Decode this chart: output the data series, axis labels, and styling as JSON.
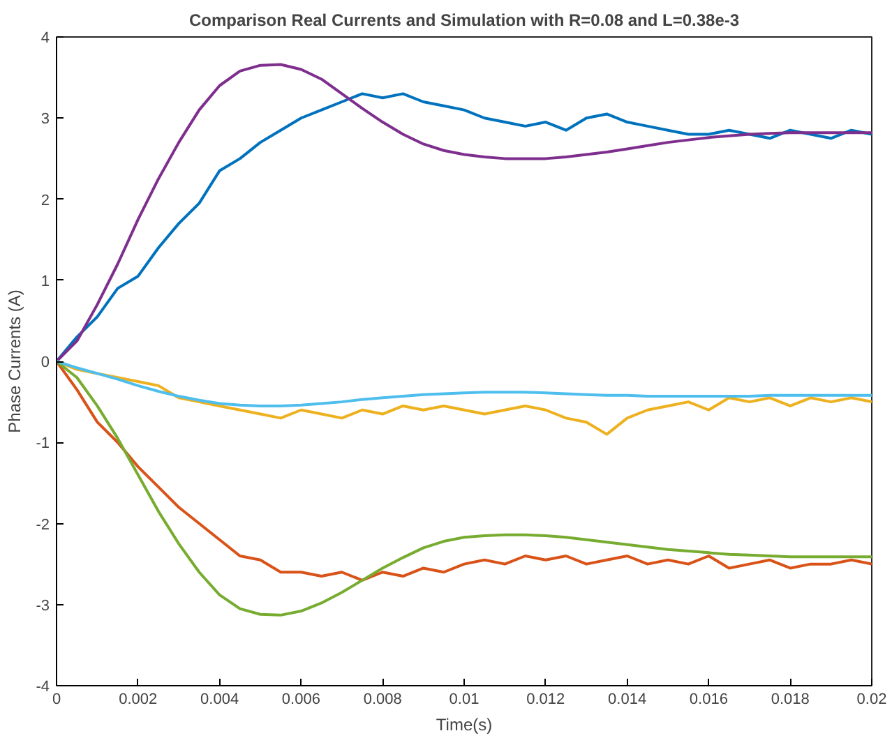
{
  "chart_data": {
    "type": "line",
    "title": "Comparison Real Currents and Simulation with R=0.08 and L=0.38e-3",
    "xlabel": "Time(s)",
    "ylabel": "Phase Currents (A)",
    "x": [
      0,
      0.0005,
      0.001,
      0.0015,
      0.002,
      0.0025,
      0.003,
      0.0035,
      0.004,
      0.0045,
      0.005,
      0.0055,
      0.006,
      0.0065,
      0.007,
      0.0075,
      0.008,
      0.0085,
      0.009,
      0.0095,
      0.01,
      0.0105,
      0.011,
      0.0115,
      0.012,
      0.0125,
      0.013,
      0.0135,
      0.014,
      0.0145,
      0.015,
      0.0155,
      0.016,
      0.0165,
      0.017,
      0.0175,
      0.018,
      0.0185,
      0.019,
      0.0195,
      0.02
    ],
    "series": [
      {
        "color": "#0072bd",
        "values": [
          0,
          0.3,
          0.55,
          0.9,
          1.05,
          1.4,
          1.7,
          1.95,
          2.35,
          2.5,
          2.7,
          2.85,
          3.0,
          3.1,
          3.2,
          3.3,
          3.25,
          3.3,
          3.2,
          3.15,
          3.1,
          3.0,
          2.95,
          2.9,
          2.95,
          2.85,
          3.0,
          3.05,
          2.95,
          2.9,
          2.85,
          2.8,
          2.8,
          2.85,
          2.8,
          2.75,
          2.85,
          2.8,
          2.75,
          2.85,
          2.8
        ]
      },
      {
        "color": "#d95319",
        "values": [
          0,
          -0.35,
          -0.75,
          -1.0,
          -1.3,
          -1.55,
          -1.8,
          -2.0,
          -2.2,
          -2.4,
          -2.45,
          -2.6,
          -2.6,
          -2.65,
          -2.6,
          -2.7,
          -2.6,
          -2.65,
          -2.55,
          -2.6,
          -2.5,
          -2.45,
          -2.5,
          -2.4,
          -2.45,
          -2.4,
          -2.5,
          -2.45,
          -2.4,
          -2.5,
          -2.45,
          -2.5,
          -2.4,
          -2.55,
          -2.5,
          -2.45,
          -2.55,
          -2.5,
          -2.5,
          -2.45,
          -2.5
        ]
      },
      {
        "color": "#edb120",
        "values": [
          0,
          -0.1,
          -0.15,
          -0.2,
          -0.25,
          -0.3,
          -0.45,
          -0.5,
          -0.55,
          -0.6,
          -0.65,
          -0.7,
          -0.6,
          -0.65,
          -0.7,
          -0.6,
          -0.65,
          -0.55,
          -0.6,
          -0.55,
          -0.6,
          -0.65,
          -0.6,
          -0.55,
          -0.6,
          -0.7,
          -0.75,
          -0.9,
          -0.7,
          -0.6,
          -0.55,
          -0.5,
          -0.6,
          -0.45,
          -0.5,
          -0.45,
          -0.55,
          -0.45,
          -0.5,
          -0.45,
          -0.5
        ]
      },
      {
        "color": "#7e2f8e",
        "values": [
          0,
          0.25,
          0.7,
          1.2,
          1.75,
          2.25,
          2.7,
          3.1,
          3.4,
          3.58,
          3.65,
          3.66,
          3.6,
          3.48,
          3.3,
          3.12,
          2.95,
          2.8,
          2.68,
          2.6,
          2.55,
          2.52,
          2.5,
          2.5,
          2.5,
          2.52,
          2.55,
          2.58,
          2.62,
          2.66,
          2.7,
          2.73,
          2.76,
          2.78,
          2.8,
          2.81,
          2.82,
          2.82,
          2.82,
          2.82,
          2.82
        ]
      },
      {
        "color": "#77ac30",
        "values": [
          0,
          -0.2,
          -0.55,
          -0.95,
          -1.4,
          -1.85,
          -2.25,
          -2.6,
          -2.88,
          -3.05,
          -3.12,
          -3.13,
          -3.08,
          -2.98,
          -2.85,
          -2.7,
          -2.55,
          -2.42,
          -2.3,
          -2.22,
          -2.17,
          -2.15,
          -2.14,
          -2.14,
          -2.15,
          -2.17,
          -2.2,
          -2.23,
          -2.26,
          -2.29,
          -2.32,
          -2.34,
          -2.36,
          -2.38,
          -2.39,
          -2.4,
          -2.41,
          -2.41,
          -2.41,
          -2.41,
          -2.41
        ]
      },
      {
        "color": "#4dbeee",
        "values": [
          0,
          -0.08,
          -0.15,
          -0.22,
          -0.3,
          -0.37,
          -0.43,
          -0.48,
          -0.52,
          -0.54,
          -0.55,
          -0.55,
          -0.54,
          -0.52,
          -0.5,
          -0.47,
          -0.45,
          -0.43,
          -0.41,
          -0.4,
          -0.39,
          -0.38,
          -0.38,
          -0.38,
          -0.39,
          -0.4,
          -0.41,
          -0.42,
          -0.42,
          -0.43,
          -0.43,
          -0.43,
          -0.43,
          -0.43,
          -0.43,
          -0.42,
          -0.42,
          -0.42,
          -0.42,
          -0.42,
          -0.42
        ]
      }
    ],
    "xlim": [
      0,
      0.02
    ],
    "ylim": [
      -4,
      4
    ],
    "xticks": [
      0,
      0.002,
      0.004,
      0.006,
      0.008,
      0.01,
      0.012,
      0.014,
      0.016,
      0.018,
      0.02
    ],
    "yticks": [
      -4,
      -3,
      -2,
      -1,
      0,
      1,
      2,
      3,
      4
    ],
    "grid": false
  }
}
